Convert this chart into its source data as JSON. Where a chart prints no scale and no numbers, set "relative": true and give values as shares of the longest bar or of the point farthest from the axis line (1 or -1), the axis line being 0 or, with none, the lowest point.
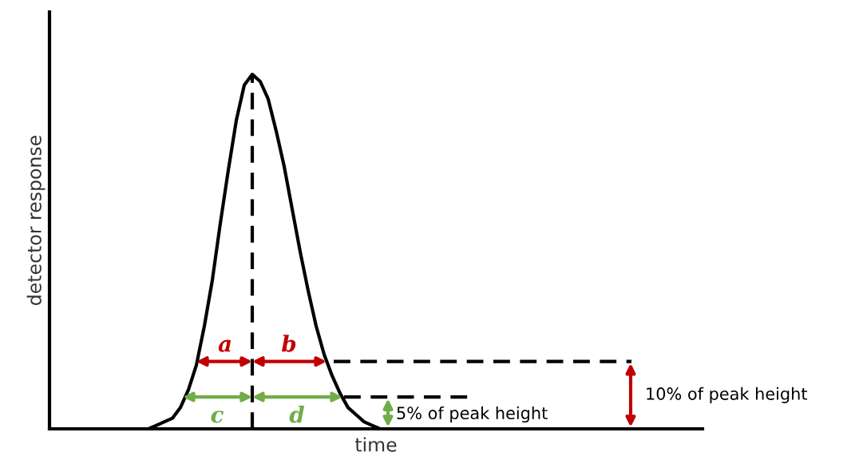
{
  "chart_data": {
    "type": "line",
    "relative": true,
    "xlabel": "time",
    "ylabel": "detector response",
    "categories": [
      null,
      null,
      null,
      null,
      null,
      null,
      null,
      null,
      null,
      null,
      null,
      null,
      null,
      null,
      null,
      null,
      null,
      null,
      null,
      null,
      null,
      null,
      null,
      null,
      null,
      null,
      null,
      null,
      null,
      null,
      null,
      null,
      null,
      null,
      null,
      null,
      null,
      null,
      null,
      null,
      null,
      null,
      null,
      null,
      null,
      null,
      null,
      null,
      null,
      null,
      null,
      null,
      null,
      null,
      null,
      null,
      null,
      null,
      null,
      null,
      null,
      null,
      null,
      null,
      null,
      null,
      null,
      null,
      null,
      null,
      null,
      null,
      null,
      null,
      null,
      null,
      null,
      null,
      null,
      null,
      null,
      null
    ],
    "series": [
      {
        "color": "#000000",
        "values": [
          0,
          0,
          0,
          0,
          0,
          0,
          0,
          0,
          0,
          0,
          0,
          0,
          0,
          0.01,
          0.02,
          0.03,
          0.06,
          0.11,
          0.18,
          0.29,
          0.42,
          0.58,
          0.73,
          0.87,
          0.97,
          1,
          0.98,
          0.93,
          0.84,
          0.74,
          0.62,
          0.5,
          0.39,
          0.29,
          0.21,
          0.15,
          0.1,
          0.06,
          0.04,
          0.02,
          0.01,
          0,
          0,
          0,
          0,
          0,
          0,
          0,
          0,
          0,
          0,
          0,
          0,
          0,
          0,
          0,
          0,
          0,
          0,
          0,
          0,
          0,
          0,
          0,
          0,
          0,
          0,
          0,
          0,
          0,
          0,
          0,
          0,
          0,
          0,
          0,
          0,
          0,
          0,
          0,
          0,
          0
        ]
      }
    ],
    "annotations": [
      "a",
      "b",
      "c",
      "d"
    ],
    "ref_lines": [
      {
        "axis": "y",
        "value": 0.19,
        "label": "10% of peak height",
        "color": "#000000",
        "line_style": "dashed"
      },
      {
        "axis": "y",
        "value": 0.09,
        "label": "5% of peak height",
        "color": "#000000",
        "line_style": "dashed"
      }
    ],
    "grid": false,
    "legend": false,
    "marker": "none",
    "line_style": "solid"
  }
}
